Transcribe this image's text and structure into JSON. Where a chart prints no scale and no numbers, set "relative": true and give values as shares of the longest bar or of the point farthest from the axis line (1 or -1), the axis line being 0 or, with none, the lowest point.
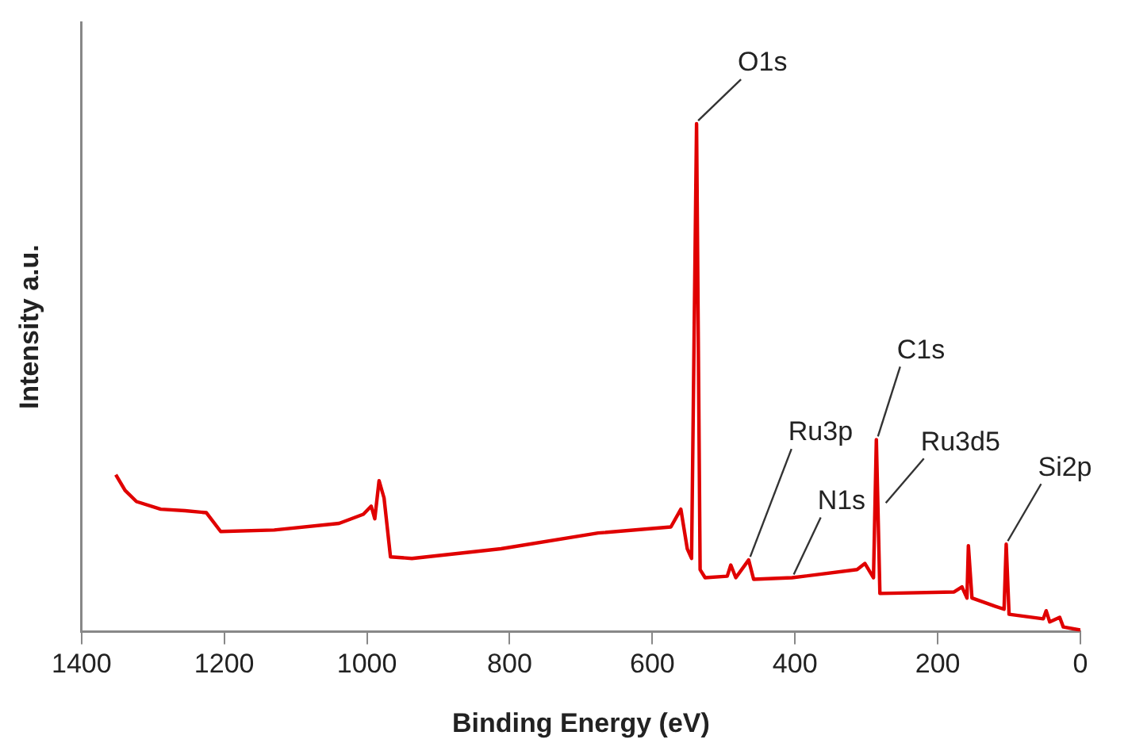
{
  "chart_data": {
    "type": "line",
    "xlabel": "Binding Energy (eV)",
    "ylabel": "Intensity a.u.",
    "relative": true,
    "xlim": [
      1400,
      0
    ],
    "xticks": [
      1400,
      1200,
      1000,
      800,
      600,
      400,
      200,
      0
    ],
    "grid": false,
    "legend": false,
    "marker": "none",
    "line_style": "solid",
    "series": [
      {
        "color": "#e00000",
        "x": [
          1352,
          1339,
          1323,
          1289,
          1255,
          1225,
          1205,
          1130,
          1039,
          1005,
          994,
          989,
          983,
          976,
          967,
          937,
          812,
          676,
          574,
          560,
          551,
          545,
          538,
          533,
          526,
          495,
          490,
          483,
          465,
          458,
          404,
          313,
          302,
          290,
          286,
          281,
          177,
          166,
          159,
          157,
          152,
          120,
          107,
          104,
          100,
          52,
          48,
          43,
          29,
          24,
          0
        ],
        "values": [
          0.309,
          0.278,
          0.256,
          0.241,
          0.238,
          0.234,
          0.197,
          0.2,
          0.213,
          0.231,
          0.247,
          0.222,
          0.297,
          0.263,
          0.147,
          0.144,
          0.163,
          0.194,
          0.206,
          0.241,
          0.163,
          0.144,
          1.0,
          0.122,
          0.106,
          0.109,
          0.131,
          0.106,
          0.141,
          0.103,
          0.106,
          0.122,
          0.134,
          0.106,
          0.378,
          0.075,
          0.078,
          0.088,
          0.066,
          0.169,
          0.066,
          0.05,
          0.044,
          0.172,
          0.034,
          0.025,
          0.041,
          0.019,
          0.028,
          0.009,
          0.003
        ]
      }
    ],
    "annotations": [
      {
        "text": "O1s",
        "x": 538,
        "y": 1.0
      },
      {
        "text": "Ru3p",
        "x": 465,
        "y": 0.141
      },
      {
        "text": "N1s",
        "x": 404,
        "y": 0.106
      },
      {
        "text": "C1s",
        "x": 286,
        "y": 0.378
      },
      {
        "text": "Ru3d5",
        "x": 275,
        "y": 0.247
      },
      {
        "text": "Si2p",
        "x": 104,
        "y": 0.172
      }
    ]
  }
}
